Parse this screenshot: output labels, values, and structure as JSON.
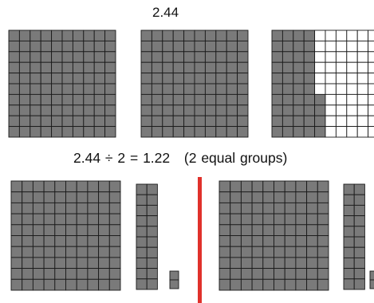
{
  "top_number": "2.44",
  "equation": "2.44 ÷ 2 = 1.22",
  "equation_note": "(2 equal groups)",
  "colors": {
    "filled": "#7a7a7a",
    "grid_line": "#1a1a1a",
    "empty": "#ffffff",
    "divider": "#e0312b"
  },
  "top_row": {
    "grids": [
      {
        "name": "hundred-grid-1",
        "filled_cells": 100
      },
      {
        "name": "hundred-grid-2",
        "filled_cells": 100
      },
      {
        "name": "hundred-grid-3",
        "filled_cells": 44
      }
    ]
  },
  "bottom_row": {
    "groups": [
      {
        "name": "group-1",
        "value": "1.22",
        "hundreds": 1,
        "tenths": 2,
        "hundredths": 2
      },
      {
        "name": "group-2",
        "value": "1.22",
        "hundreds": 1,
        "tenths": 2,
        "hundredths": 2
      }
    ]
  }
}
